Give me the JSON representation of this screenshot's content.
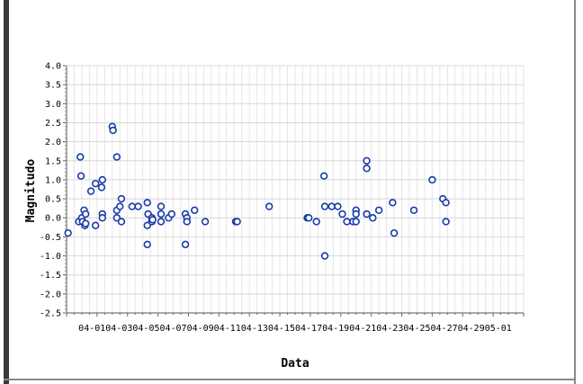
{
  "chart_data": {
    "type": "scatter",
    "title": "",
    "xlabel": "Data",
    "ylabel": "Magnitudo",
    "ylim": [
      -2.5,
      4.0
    ],
    "yticks": [
      "4.0",
      "3.5",
      "3.0",
      "2.5",
      "2.0",
      "1.5",
      "1.0",
      "0.5",
      "0.0",
      "-0.5",
      "-1.0",
      "-1.5",
      "-2.0",
      "-2.5"
    ],
    "xlim": [
      1,
      31
    ],
    "xticks": [
      {
        "day": 1,
        "label": "04-01"
      },
      {
        "day": 3,
        "label": "04-03"
      },
      {
        "day": 5,
        "label": "04-05"
      },
      {
        "day": 7,
        "label": "04-07"
      },
      {
        "day": 9,
        "label": "04-09"
      },
      {
        "day": 11,
        "label": "04-11"
      },
      {
        "day": 13,
        "label": "04-13"
      },
      {
        "day": 15,
        "label": "04-15"
      },
      {
        "day": 17,
        "label": "04-17"
      },
      {
        "day": 19,
        "label": "04-19"
      },
      {
        "day": 21,
        "label": "04-21"
      },
      {
        "day": 23,
        "label": "04-23"
      },
      {
        "day": 25,
        "label": "04-25"
      },
      {
        "day": 27,
        "label": "04-27"
      },
      {
        "day": 29,
        "label": "04-29"
      },
      {
        "day": 31,
        "label": "05-01"
      }
    ],
    "x_axis_labels_text": [
      "04-01",
      "04-03",
      "04-05",
      "04-07",
      "04-09",
      "04-11",
      "04-13",
      "04-15",
      "04-17",
      "04-19",
      "04-21",
      "04-23",
      "04-25",
      "04-27",
      "04-29",
      "05-01"
    ],
    "grid": true,
    "marker_color": "#1a3aa8",
    "points": [
      [
        1.1,
        -0.4
      ],
      [
        1.8,
        -0.1
      ],
      [
        1.9,
        1.6
      ],
      [
        1.95,
        1.1
      ],
      [
        2.0,
        0.0
      ],
      [
        2.05,
        -0.1
      ],
      [
        2.15,
        0.2
      ],
      [
        2.2,
        -0.2
      ],
      [
        2.25,
        0.1
      ],
      [
        2.25,
        -0.15
      ],
      [
        2.6,
        0.7
      ],
      [
        2.9,
        0.9
      ],
      [
        2.9,
        -0.2
      ],
      [
        3.3,
        0.8
      ],
      [
        3.35,
        1.0
      ],
      [
        3.35,
        0.1
      ],
      [
        3.35,
        0.0
      ],
      [
        4.0,
        2.4
      ],
      [
        4.05,
        2.3
      ],
      [
        4.3,
        1.6
      ],
      [
        4.3,
        0.2
      ],
      [
        4.3,
        0.0
      ],
      [
        4.5,
        0.3
      ],
      [
        4.6,
        0.5
      ],
      [
        4.6,
        -0.1
      ],
      [
        5.3,
        0.3
      ],
      [
        5.7,
        0.3
      ],
      [
        6.3,
        0.4
      ],
      [
        6.3,
        -0.2
      ],
      [
        6.3,
        -0.7
      ],
      [
        6.35,
        0.1
      ],
      [
        6.6,
        0.0
      ],
      [
        6.6,
        -0.1
      ],
      [
        6.65,
        -0.05
      ],
      [
        7.2,
        0.3
      ],
      [
        7.2,
        0.1
      ],
      [
        7.2,
        -0.1
      ],
      [
        7.7,
        0.0
      ],
      [
        7.9,
        0.1
      ],
      [
        8.8,
        0.1
      ],
      [
        8.8,
        -0.7
      ],
      [
        8.9,
        0.0
      ],
      [
        8.9,
        -0.1
      ],
      [
        9.4,
        0.2
      ],
      [
        10.1,
        -0.1
      ],
      [
        12.1,
        -0.1
      ],
      [
        12.2,
        -0.1
      ],
      [
        14.3,
        0.3
      ],
      [
        16.8,
        0.0
      ],
      [
        16.9,
        0.0
      ],
      [
        17.4,
        -0.1
      ],
      [
        17.9,
        1.1
      ],
      [
        17.95,
        -1.0
      ],
      [
        17.95,
        0.3
      ],
      [
        18.4,
        0.3
      ],
      [
        18.8,
        0.3
      ],
      [
        19.1,
        0.1
      ],
      [
        19.4,
        -0.1
      ],
      [
        19.8,
        -0.1
      ],
      [
        20.0,
        0.2
      ],
      [
        20.0,
        0.1
      ],
      [
        20.0,
        -0.1
      ],
      [
        20.7,
        1.5
      ],
      [
        20.7,
        1.3
      ],
      [
        20.7,
        0.1
      ],
      [
        21.1,
        0.0
      ],
      [
        21.5,
        0.2
      ],
      [
        22.4,
        0.4
      ],
      [
        22.5,
        -0.4
      ],
      [
        23.8,
        0.2
      ],
      [
        25.0,
        1.0
      ],
      [
        25.7,
        0.5
      ],
      [
        25.9,
        0.4
      ],
      [
        25.9,
        -0.1
      ]
    ]
  }
}
